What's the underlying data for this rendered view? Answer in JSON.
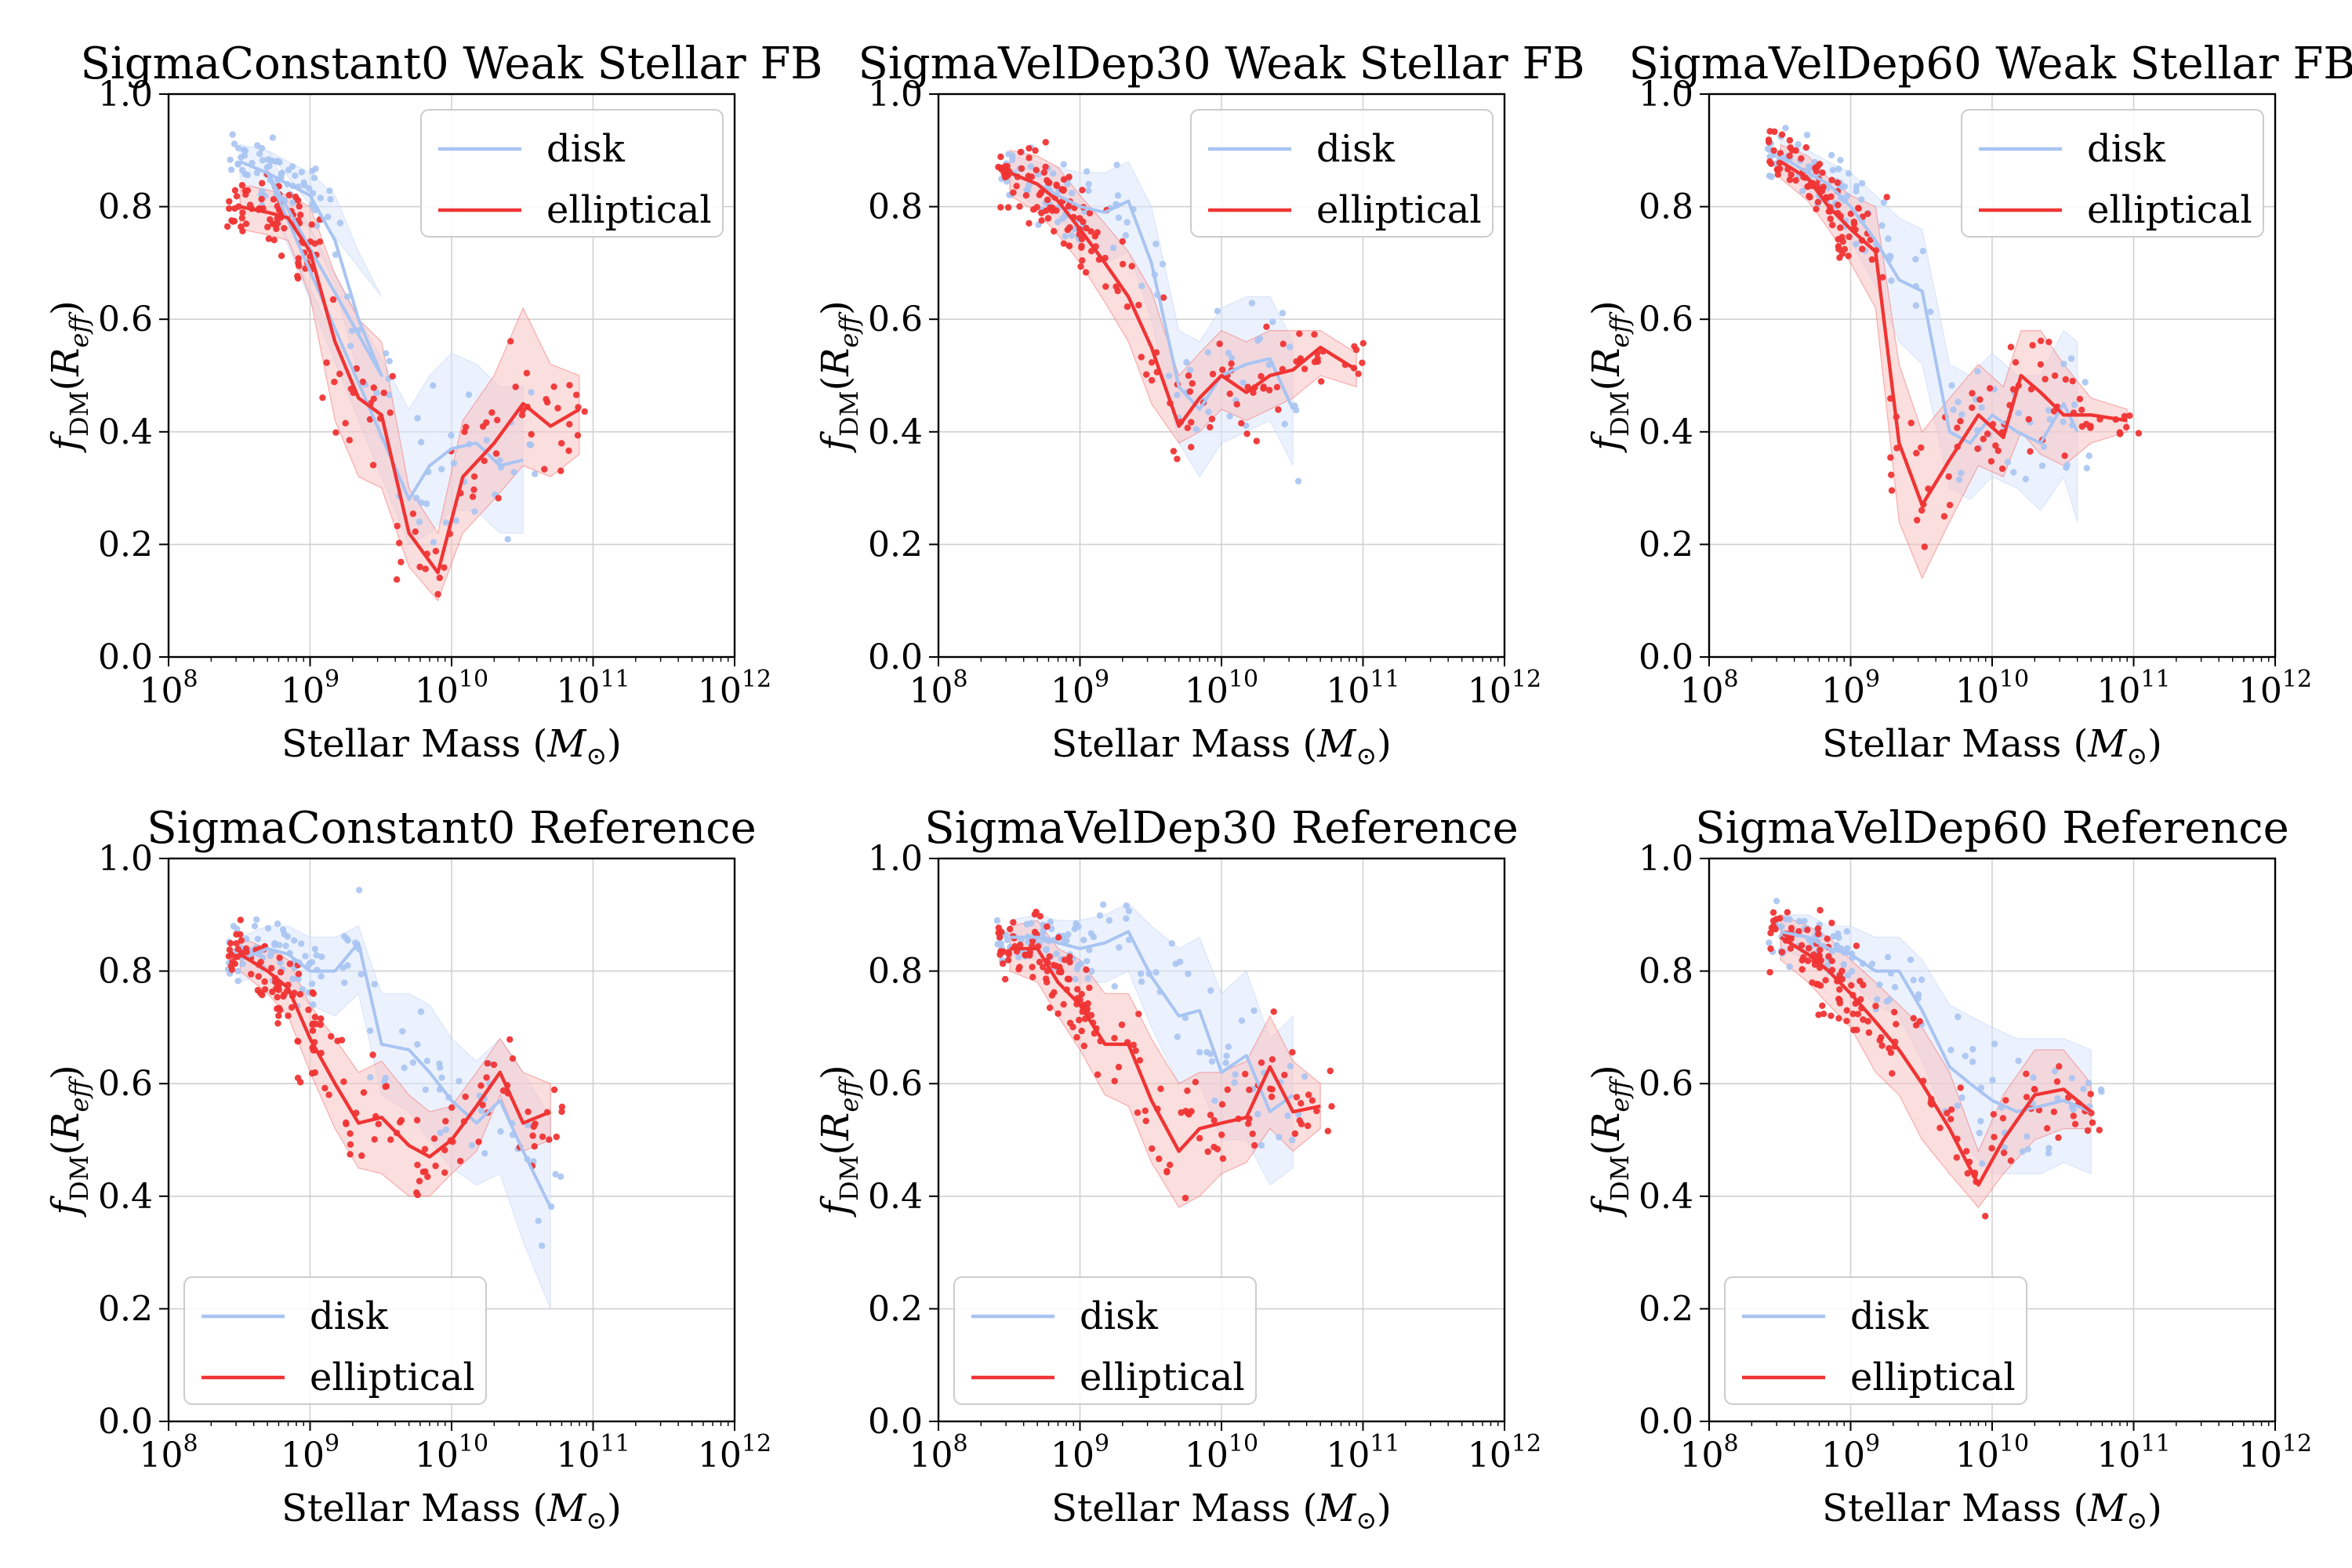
{
  "colors": {
    "disk": "#a8c4f2",
    "elliptical": "#f03434",
    "disk_band": "#dce8fb",
    "elliptical_band": "#f8c2c2"
  },
  "common": {
    "xlabel": "Stellar Mass (M⊙)",
    "ylabel": "f_DM(R_eff)",
    "x_ticks": [
      "10^8",
      "10^9",
      "10^10",
      "10^11",
      "10^12"
    ],
    "y_ticks": [
      "0.0",
      "0.2",
      "0.4",
      "0.6",
      "0.8",
      "1.0"
    ],
    "legend": [
      "disk",
      "elliptical"
    ]
  },
  "chart_data": [
    {
      "type": "line",
      "title": "SigmaConstant0 Weak Stellar FB",
      "xscale": "log",
      "xlim": [
        100000000.0,
        1000000000000.0
      ],
      "ylim": [
        0,
        1
      ],
      "grid": true,
      "legend_loc": "top-right",
      "series": [
        {
          "name": "disk",
          "x": [
            320000000.0,
            500000000.0,
            700000000.0,
            1000000000.0,
            1500000000.0,
            2200000000.0,
            3200000000.0,
            500000000.0,
            5000000000.0,
            7000000000.0,
            10000000000.0,
            15000000000.0,
            22000000000.0,
            32000000000.0
          ],
          "y": [
            0.88,
            0.86,
            0.84,
            0.82,
            0.74,
            0.6,
            0.5,
            0.86,
            0.28,
            0.34,
            0.37,
            0.38,
            0.34,
            0.35
          ],
          "band_lo": [
            0.85,
            0.82,
            0.8,
            0.76,
            0.66,
            0.5,
            0.38,
            0.82,
            0.2,
            0.22,
            0.26,
            0.26,
            0.22,
            0.22
          ],
          "band_hi": [
            0.91,
            0.9,
            0.88,
            0.86,
            0.82,
            0.72,
            0.64,
            0.9,
            0.44,
            0.5,
            0.54,
            0.52,
            0.48,
            0.48
          ]
        },
        {
          "name": "elliptical",
          "x": [
            320000000.0,
            500000000.0,
            700000000.0,
            1000000000.0,
            1500000000.0,
            2200000000.0,
            3200000000.0,
            5000000000.0,
            8000000000.0,
            12000000000.0,
            20000000000.0,
            32000000000.0,
            50000000000.0,
            80000000000.0
          ],
          "y": [
            0.8,
            0.79,
            0.78,
            0.72,
            0.56,
            0.46,
            0.43,
            0.22,
            0.15,
            0.32,
            0.38,
            0.45,
            0.41,
            0.44
          ],
          "band_lo": [
            0.76,
            0.75,
            0.74,
            0.64,
            0.42,
            0.32,
            0.3,
            0.16,
            0.1,
            0.22,
            0.28,
            0.34,
            0.32,
            0.36
          ],
          "band_hi": [
            0.84,
            0.83,
            0.82,
            0.8,
            0.68,
            0.6,
            0.56,
            0.3,
            0.22,
            0.42,
            0.5,
            0.62,
            0.52,
            0.5
          ]
        }
      ]
    },
    {
      "type": "line",
      "title": "SigmaVelDep30 Weak Stellar FB",
      "xscale": "log",
      "xlim": [
        100000000.0,
        1000000000000.0
      ],
      "ylim": [
        0,
        1
      ],
      "grid": true,
      "legend_loc": "top-right",
      "series": [
        {
          "name": "disk",
          "x": [
            320000000.0,
            500000000.0,
            700000000.0,
            1000000000.0,
            1500000000.0,
            2200000000.0,
            3200000000.0,
            5000000000.0,
            7000000000.0,
            10000000000.0,
            15000000000.0,
            22000000000.0,
            32000000000.0
          ],
          "y": [
            0.86,
            0.84,
            0.82,
            0.8,
            0.79,
            0.81,
            0.7,
            0.48,
            0.44,
            0.5,
            0.52,
            0.53,
            0.44
          ],
          "band_lo": [
            0.83,
            0.8,
            0.78,
            0.74,
            0.7,
            0.72,
            0.6,
            0.38,
            0.32,
            0.38,
            0.4,
            0.42,
            0.34
          ],
          "band_hi": [
            0.89,
            0.88,
            0.87,
            0.86,
            0.86,
            0.88,
            0.8,
            0.58,
            0.56,
            0.62,
            0.64,
            0.64,
            0.56
          ]
        },
        {
          "name": "elliptical",
          "x": [
            320000000.0,
            500000000.0,
            700000000.0,
            1000000000.0,
            1500000000.0,
            2200000000.0,
            3200000000.0,
            5000000000.0,
            7000000000.0,
            10000000000.0,
            15000000000.0,
            22000000000.0,
            32000000000.0,
            50000000000.0,
            90000000000.0
          ],
          "y": [
            0.86,
            0.84,
            0.81,
            0.76,
            0.7,
            0.64,
            0.55,
            0.41,
            0.46,
            0.5,
            0.47,
            0.5,
            0.51,
            0.55,
            0.51
          ],
          "band_lo": [
            0.82,
            0.79,
            0.75,
            0.7,
            0.63,
            0.56,
            0.45,
            0.38,
            0.4,
            0.44,
            0.42,
            0.44,
            0.46,
            0.5,
            0.48
          ],
          "band_hi": [
            0.9,
            0.89,
            0.87,
            0.82,
            0.77,
            0.72,
            0.65,
            0.5,
            0.54,
            0.58,
            0.56,
            0.58,
            0.58,
            0.58,
            0.54
          ]
        }
      ]
    },
    {
      "type": "line",
      "title": "SigmaVelDep60 Weak Stellar FB",
      "xscale": "log",
      "xlim": [
        100000000.0,
        1000000000000.0
      ],
      "ylim": [
        0,
        1
      ],
      "grid": true,
      "legend_loc": "top-right",
      "series": [
        {
          "name": "disk",
          "x": [
            320000000.0,
            500000000.0,
            700000000.0,
            1000000000.0,
            1500000000.0,
            2200000000.0,
            3200000000.0,
            5000000000.0,
            7000000000.0,
            10000000000.0,
            15000000000.0,
            22000000000.0,
            32000000000.0,
            40000000000.0
          ],
          "y": [
            0.89,
            0.86,
            0.84,
            0.8,
            0.74,
            0.67,
            0.65,
            0.4,
            0.38,
            0.43,
            0.4,
            0.38,
            0.45,
            0.4
          ],
          "band_lo": [
            0.86,
            0.83,
            0.8,
            0.74,
            0.66,
            0.56,
            0.52,
            0.3,
            0.28,
            0.32,
            0.3,
            0.26,
            0.32,
            0.24
          ],
          "band_hi": [
            0.92,
            0.9,
            0.88,
            0.86,
            0.82,
            0.78,
            0.76,
            0.52,
            0.5,
            0.54,
            0.5,
            0.5,
            0.58,
            0.56
          ]
        },
        {
          "name": "elliptical",
          "x": [
            320000000.0,
            500000000.0,
            700000000.0,
            1000000000.0,
            1500000000.0,
            2200000000.0,
            3200000000.0,
            5000000000.0,
            8000000000.0,
            12000000000.0,
            16000000000.0,
            22000000000.0,
            32000000000.0,
            50000000000.0,
            90000000000.0
          ],
          "y": [
            0.88,
            0.85,
            0.8,
            0.76,
            0.72,
            0.38,
            0.27,
            0.35,
            0.43,
            0.39,
            0.5,
            0.47,
            0.43,
            0.43,
            0.42
          ],
          "band_lo": [
            0.85,
            0.81,
            0.76,
            0.7,
            0.62,
            0.24,
            0.14,
            0.24,
            0.34,
            0.32,
            0.4,
            0.36,
            0.34,
            0.38,
            0.4
          ],
          "band_hi": [
            0.91,
            0.89,
            0.85,
            0.82,
            0.8,
            0.52,
            0.4,
            0.46,
            0.52,
            0.48,
            0.58,
            0.58,
            0.52,
            0.46,
            0.44
          ]
        }
      ]
    },
    {
      "type": "line",
      "title": "SigmaConstant0 Reference",
      "xscale": "log",
      "xlim": [
        100000000.0,
        1000000000000.0
      ],
      "ylim": [
        0,
        1
      ],
      "grid": true,
      "legend_loc": "bottom-left",
      "series": [
        {
          "name": "disk",
          "x": [
            320000000.0,
            500000000.0,
            700000000.0,
            1000000000.0,
            1500000000.0,
            2200000000.0,
            3200000000.0,
            5000000000.0,
            7000000000.0,
            10000000000.0,
            15000000000.0,
            22000000000.0,
            32000000000.0,
            50000000000.0
          ],
          "y": [
            0.82,
            0.84,
            0.83,
            0.8,
            0.8,
            0.85,
            0.67,
            0.66,
            0.62,
            0.57,
            0.53,
            0.57,
            0.48,
            0.38
          ],
          "band_lo": [
            0.78,
            0.8,
            0.78,
            0.74,
            0.72,
            0.76,
            0.58,
            0.55,
            0.5,
            0.45,
            0.42,
            0.44,
            0.32,
            0.2
          ],
          "band_hi": [
            0.86,
            0.88,
            0.88,
            0.86,
            0.86,
            0.88,
            0.76,
            0.76,
            0.74,
            0.68,
            0.64,
            0.68,
            0.62,
            0.54
          ]
        },
        {
          "name": "elliptical",
          "x": [
            320000000.0,
            500000000.0,
            700000000.0,
            1000000000.0,
            1500000000.0,
            2200000000.0,
            3200000000.0,
            5000000000.0,
            7000000000.0,
            10000000000.0,
            15000000000.0,
            22000000000.0,
            32000000000.0,
            50000000000.0
          ],
          "y": [
            0.83,
            0.8,
            0.77,
            0.68,
            0.6,
            0.53,
            0.54,
            0.49,
            0.47,
            0.5,
            0.56,
            0.62,
            0.53,
            0.55
          ],
          "band_lo": [
            0.8,
            0.76,
            0.72,
            0.62,
            0.52,
            0.45,
            0.44,
            0.4,
            0.4,
            0.44,
            0.48,
            0.58,
            0.48,
            0.5
          ],
          "band_hi": [
            0.86,
            0.84,
            0.82,
            0.74,
            0.68,
            0.62,
            0.64,
            0.58,
            0.55,
            0.56,
            0.62,
            0.68,
            0.62,
            0.6
          ]
        }
      ]
    },
    {
      "type": "line",
      "title": "SigmaVelDep30 Reference",
      "xscale": "log",
      "xlim": [
        100000000.0,
        1000000000000.0
      ],
      "ylim": [
        0,
        1
      ],
      "grid": true,
      "legend_loc": "bottom-left",
      "series": [
        {
          "name": "disk",
          "x": [
            320000000.0,
            500000000.0,
            700000000.0,
            1000000000.0,
            1500000000.0,
            2200000000.0,
            3200000000.0,
            5000000000.0,
            7000000000.0,
            10000000000.0,
            15000000000.0,
            22000000000.0,
            32000000000.0
          ],
          "y": [
            0.86,
            0.86,
            0.85,
            0.84,
            0.85,
            0.87,
            0.79,
            0.72,
            0.73,
            0.62,
            0.65,
            0.55,
            0.58
          ],
          "band_lo": [
            0.83,
            0.82,
            0.81,
            0.78,
            0.78,
            0.8,
            0.7,
            0.6,
            0.6,
            0.5,
            0.5,
            0.42,
            0.45
          ],
          "band_hi": [
            0.89,
            0.9,
            0.89,
            0.89,
            0.9,
            0.92,
            0.88,
            0.84,
            0.86,
            0.76,
            0.8,
            0.68,
            0.72
          ]
        },
        {
          "name": "elliptical",
          "x": [
            320000000.0,
            500000000.0,
            700000000.0,
            1000000000.0,
            1500000000.0,
            2200000000.0,
            3200000000.0,
            5000000000.0,
            7000000000.0,
            10000000000.0,
            15000000000.0,
            22000000000.0,
            32000000000.0,
            50000000000.0
          ],
          "y": [
            0.84,
            0.84,
            0.78,
            0.74,
            0.67,
            0.67,
            0.57,
            0.48,
            0.52,
            0.53,
            0.54,
            0.63,
            0.55,
            0.56
          ],
          "band_lo": [
            0.8,
            0.78,
            0.72,
            0.66,
            0.58,
            0.56,
            0.46,
            0.38,
            0.4,
            0.44,
            0.46,
            0.52,
            0.48,
            0.52
          ],
          "band_hi": [
            0.88,
            0.89,
            0.84,
            0.82,
            0.76,
            0.76,
            0.68,
            0.6,
            0.62,
            0.62,
            0.64,
            0.72,
            0.64,
            0.6
          ]
        }
      ]
    },
    {
      "type": "line",
      "title": "SigmaVelDep60 Reference",
      "xscale": "log",
      "xlim": [
        100000000.0,
        1000000000000.0
      ],
      "ylim": [
        0,
        1
      ],
      "grid": true,
      "legend_loc": "bottom-left",
      "series": [
        {
          "name": "disk",
          "x": [
            320000000.0,
            500000000.0,
            700000000.0,
            1000000000.0,
            1500000000.0,
            2200000000.0,
            3200000000.0,
            5000000000.0,
            7000000000.0,
            10000000000.0,
            15000000000.0,
            22000000000.0,
            32000000000.0,
            50000000000.0
          ],
          "y": [
            0.87,
            0.86,
            0.84,
            0.83,
            0.8,
            0.8,
            0.73,
            0.63,
            0.6,
            0.57,
            0.55,
            0.56,
            0.57,
            0.55
          ],
          "band_lo": [
            0.84,
            0.82,
            0.8,
            0.78,
            0.74,
            0.72,
            0.64,
            0.52,
            0.48,
            0.44,
            0.44,
            0.44,
            0.46,
            0.44
          ],
          "band_hi": [
            0.9,
            0.9,
            0.88,
            0.88,
            0.86,
            0.86,
            0.82,
            0.74,
            0.72,
            0.7,
            0.68,
            0.68,
            0.68,
            0.66
          ]
        },
        {
          "name": "elliptical",
          "x": [
            320000000.0,
            500000000.0,
            700000000.0,
            1000000000.0,
            1500000000.0,
            2200000000.0,
            3200000000.0,
            5000000000.0,
            8000000000.0,
            12000000000.0,
            20000000000.0,
            32000000000.0,
            50000000000.0
          ],
          "y": [
            0.86,
            0.83,
            0.8,
            0.76,
            0.71,
            0.66,
            0.6,
            0.52,
            0.42,
            0.5,
            0.58,
            0.59,
            0.55
          ],
          "band_lo": [
            0.82,
            0.78,
            0.74,
            0.7,
            0.62,
            0.58,
            0.5,
            0.44,
            0.38,
            0.44,
            0.5,
            0.52,
            0.52
          ],
          "band_hi": [
            0.9,
            0.88,
            0.86,
            0.82,
            0.78,
            0.74,
            0.7,
            0.62,
            0.48,
            0.58,
            0.66,
            0.66,
            0.6
          ]
        }
      ]
    }
  ]
}
